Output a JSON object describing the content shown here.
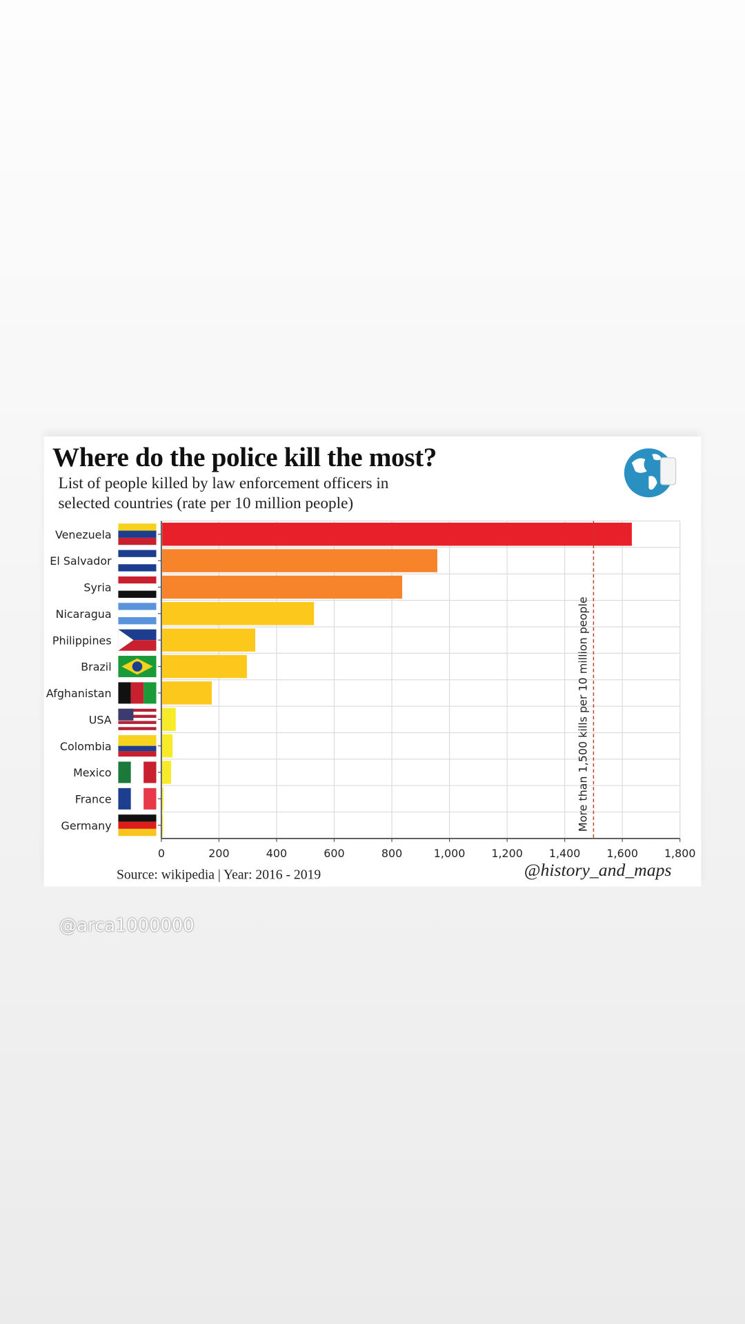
{
  "chart_data": {
    "type": "bar",
    "orientation": "horizontal",
    "title": "Where do the police kill the most?",
    "subtitle": [
      "List of people killed by law enforcement officers in",
      "selected countries (rate per 10 million people)"
    ],
    "categories": [
      "Venezuela",
      "El Salvador",
      "Syria",
      "Nicaragua",
      "Philippines",
      "Brazil",
      "Afghanistan",
      "USA",
      "Colombia",
      "Mexico",
      "France",
      "Germany"
    ],
    "values": [
      1630,
      955,
      833,
      527,
      323,
      294,
      172,
      47,
      36,
      31,
      4,
      1
    ],
    "bar_colors": [
      "#e8202a",
      "#f7832a",
      "#f7832a",
      "#fcc81c",
      "#fcc81c",
      "#fcc81c",
      "#fcc81c",
      "#f7ea28",
      "#f7ea28",
      "#f7ea28",
      "#f7ea28",
      "#f7ea28"
    ],
    "xlim": [
      0,
      1800
    ],
    "xticks": [
      0,
      200,
      400,
      600,
      800,
      1000,
      1200,
      1400,
      1600,
      1800
    ],
    "xtick_labels": [
      "0",
      "200",
      "400",
      "600",
      "800",
      "1,000",
      "1,200",
      "1,400",
      "1,600",
      "1,800"
    ],
    "grid": true,
    "reference_line": {
      "value": 1500,
      "label": "More than 1,500 kills per 10 million people",
      "color": "#c0392b"
    },
    "xlabel": "",
    "ylabel": ""
  },
  "footer": {
    "source": "Source: wikipedia  |  Year: 2016 - 2019",
    "credit": "@history_and_maps"
  },
  "watermark": "@arca1000000"
}
